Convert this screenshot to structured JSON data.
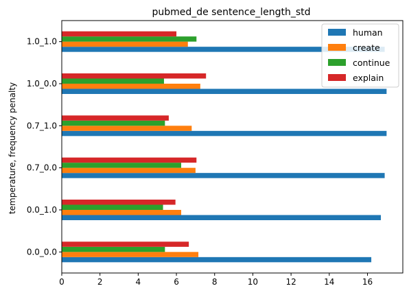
{
  "chart_data": {
    "type": "bar",
    "orientation": "horizontal",
    "title": "pubmed_de sentence_length_std",
    "xlabel": "",
    "ylabel": "temperature, frequency penalty",
    "categories": [
      "0.0_0.0",
      "0.0_1.0",
      "0.7_0.0",
      "0.7_1.0",
      "1.0_0.0",
      "1.0_1.0"
    ],
    "series": [
      {
        "name": "human",
        "color": "#1f77b4",
        "values": [
          16.2,
          16.7,
          16.9,
          17.0,
          17.0,
          16.9
        ]
      },
      {
        "name": "create",
        "color": "#ff7f0e",
        "values": [
          7.15,
          6.25,
          7.0,
          6.8,
          7.25,
          6.6
        ]
      },
      {
        "name": "continue",
        "color": "#2ca02c",
        "values": [
          5.4,
          5.3,
          6.25,
          5.4,
          5.35,
          7.05
        ]
      },
      {
        "name": "explain",
        "color": "#d62728",
        "values": [
          6.65,
          5.95,
          7.05,
          5.6,
          7.55,
          6.0
        ]
      }
    ],
    "xlim": [
      0,
      17.85
    ],
    "xticks": [
      0,
      2,
      4,
      6,
      8,
      10,
      12,
      14,
      16
    ],
    "grid": false,
    "legend_position": "top-right"
  }
}
